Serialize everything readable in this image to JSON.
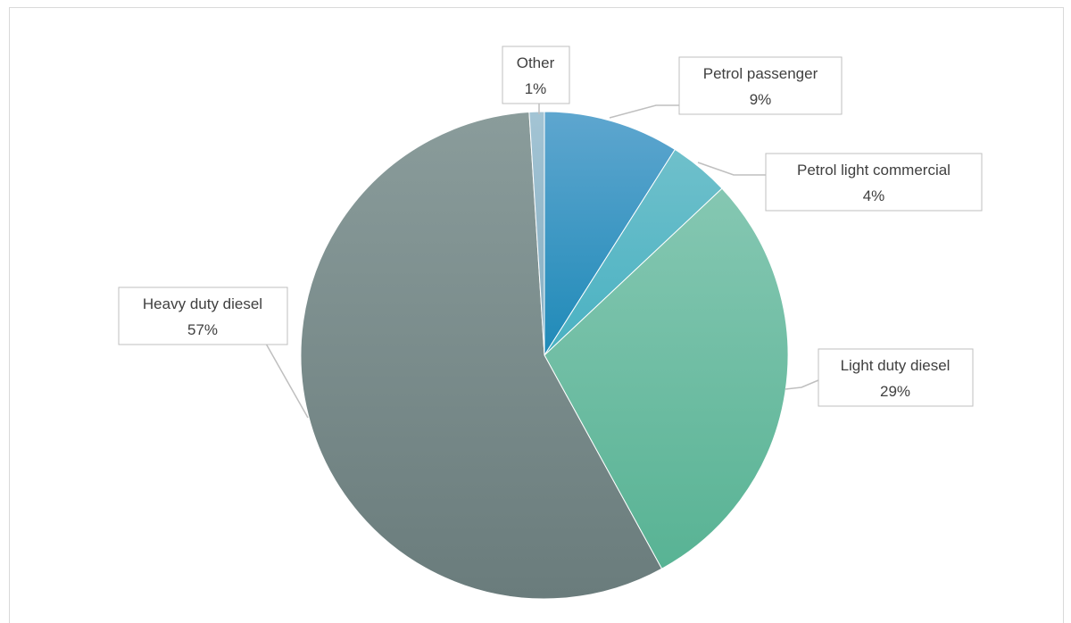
{
  "chart_data": {
    "type": "pie",
    "title": "",
    "slices": [
      {
        "label": "Petrol passenger",
        "value": 9,
        "value_label": "9%",
        "color": "#2e8fc0"
      },
      {
        "label": "Petrol light commercial",
        "value": 4,
        "value_label": "4%",
        "color": "#4db3c4"
      },
      {
        "label": "Light duty diesel",
        "value": 29,
        "value_label": "29%",
        "color": "#66bda2"
      },
      {
        "label": "Heavy duty diesel",
        "value": 57,
        "value_label": "57%",
        "color": "#748585"
      },
      {
        "label": "Other",
        "value": 1,
        "value_label": "1%",
        "color": "#8fb5c9"
      }
    ],
    "legend": "none",
    "data_labels": "callouts"
  }
}
